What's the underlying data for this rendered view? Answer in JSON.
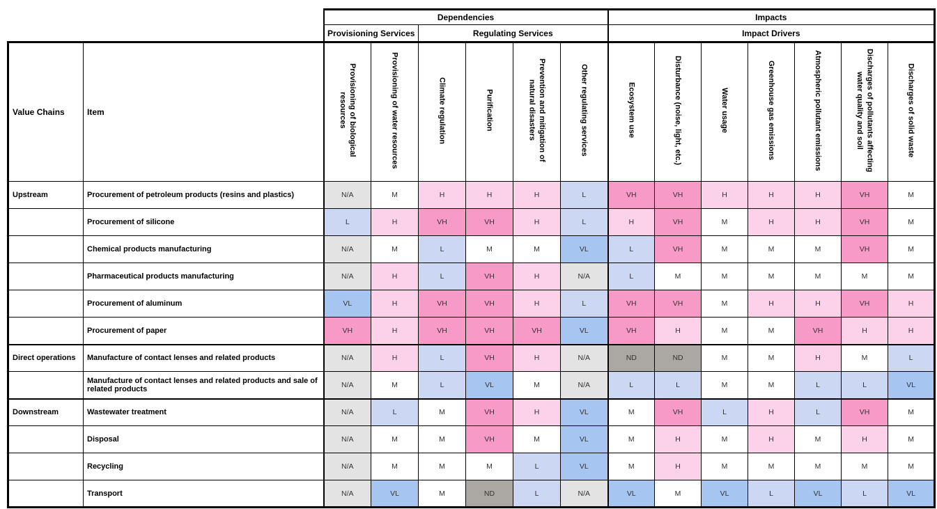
{
  "table": {
    "corner": {
      "value_chains": "Value Chains",
      "item": "Item"
    },
    "groups": {
      "dependencies": "Dependencies",
      "impacts": "Impacts",
      "provisioning_services": "Provisioning Services",
      "regulating_services": "Regulating Services",
      "impact_drivers": "Impact Drivers"
    },
    "columns": {
      "dependencies": [
        "Provisioning of biological\nresources",
        "Provisioning of water resources",
        "Climate regulation",
        "Purification",
        "Prevention and mitigation of\nnatural disasters",
        "Other regulating services"
      ],
      "impacts": [
        "Ecosystem use",
        "Disturbance (noise, light, etc.)",
        "Water usage",
        "Greenhouse gas emissions",
        "Atmospheric pollutant emissions",
        "Discharges of pollutants affecting\nwater quality and soil",
        "Discharges of solid waste"
      ]
    },
    "rating_scale": [
      "VH",
      "H",
      "M",
      "L",
      "VL",
      "N/A",
      "ND"
    ],
    "palette": {
      "VH": "#F89AC8",
      "H": "#FBD2E9",
      "M": "#FFFFFF",
      "L": "#CCD7F4",
      "VL": "#A6C6F1",
      "N/A": "#E3E3E3",
      "ND": "#ABA7A3"
    },
    "rows": [
      {
        "section": "Upstream",
        "item": "Procurement of petroleum products (resins and plastics)",
        "dependencies": [
          "N/A",
          "M",
          "H",
          "H",
          "H",
          "L"
        ],
        "impacts": [
          "VH",
          "VH",
          "H",
          "H",
          "H",
          "VH",
          "M"
        ]
      },
      {
        "section": "",
        "item": "Procurement of silicone",
        "dependencies": [
          "L",
          "H",
          "VH",
          "VH",
          "H",
          "L"
        ],
        "impacts": [
          "H",
          "VH",
          "M",
          "H",
          "H",
          "VH",
          "M"
        ]
      },
      {
        "section": "",
        "item": "Chemical products manufacturing",
        "dependencies": [
          "N/A",
          "M",
          "L",
          "M",
          "M",
          "VL"
        ],
        "impacts": [
          "L",
          "VH",
          "M",
          "M",
          "M",
          "VH",
          "M"
        ]
      },
      {
        "section": "",
        "item": "Pharmaceutical products manufacturing",
        "dependencies": [
          "N/A",
          "H",
          "L",
          "VH",
          "H",
          "N/A"
        ],
        "impacts": [
          "L",
          "M",
          "M",
          "M",
          "M",
          "M",
          "M"
        ]
      },
      {
        "section": "",
        "item": "Procurement of aluminum",
        "dependencies": [
          "VL",
          "H",
          "VH",
          "VH",
          "H",
          "L"
        ],
        "impacts": [
          "VH",
          "VH",
          "M",
          "H",
          "H",
          "VH",
          "H"
        ]
      },
      {
        "section": "",
        "item": "Procurement of paper",
        "dependencies": [
          "VH",
          "H",
          "VH",
          "VH",
          "VH",
          "VL"
        ],
        "impacts": [
          "VH",
          "H",
          "M",
          "M",
          "VH",
          "H",
          "H"
        ]
      },
      {
        "section": "Direct operations",
        "item": "Manufacture of contact lenses and related products",
        "dependencies": [
          "N/A",
          "H",
          "L",
          "VH",
          "H",
          "N/A"
        ],
        "impacts": [
          "ND",
          "ND",
          "M",
          "M",
          "H",
          "M",
          "L"
        ]
      },
      {
        "section": "",
        "item": "Manufacture of contact lenses and related products and sale of related products",
        "dependencies": [
          "N/A",
          "M",
          "L",
          "VL",
          "M",
          "N/A"
        ],
        "impacts": [
          "L",
          "L",
          "M",
          "M",
          "L",
          "L",
          "VL"
        ]
      },
      {
        "section": "Downstream",
        "item": "Wastewater treatment",
        "dependencies": [
          "N/A",
          "L",
          "M",
          "VH",
          "H",
          "VL"
        ],
        "impacts": [
          "M",
          "VH",
          "L",
          "H",
          "L",
          "VH",
          "M"
        ]
      },
      {
        "section": "",
        "item": "Disposal",
        "dependencies": [
          "N/A",
          "M",
          "M",
          "VH",
          "M",
          "VL"
        ],
        "impacts": [
          "M",
          "H",
          "M",
          "H",
          "M",
          "H",
          "M"
        ]
      },
      {
        "section": "",
        "item": "Recycling",
        "dependencies": [
          "N/A",
          "M",
          "M",
          "M",
          "L",
          "VL"
        ],
        "impacts": [
          "M",
          "H",
          "M",
          "M",
          "M",
          "M",
          "M"
        ]
      },
      {
        "section": "",
        "item": "Transport",
        "dependencies": [
          "N/A",
          "VL",
          "M",
          "ND",
          "L",
          "N/A"
        ],
        "impacts": [
          "VL",
          "M",
          "VL",
          "L",
          "VL",
          "L",
          "VL"
        ]
      }
    ]
  }
}
